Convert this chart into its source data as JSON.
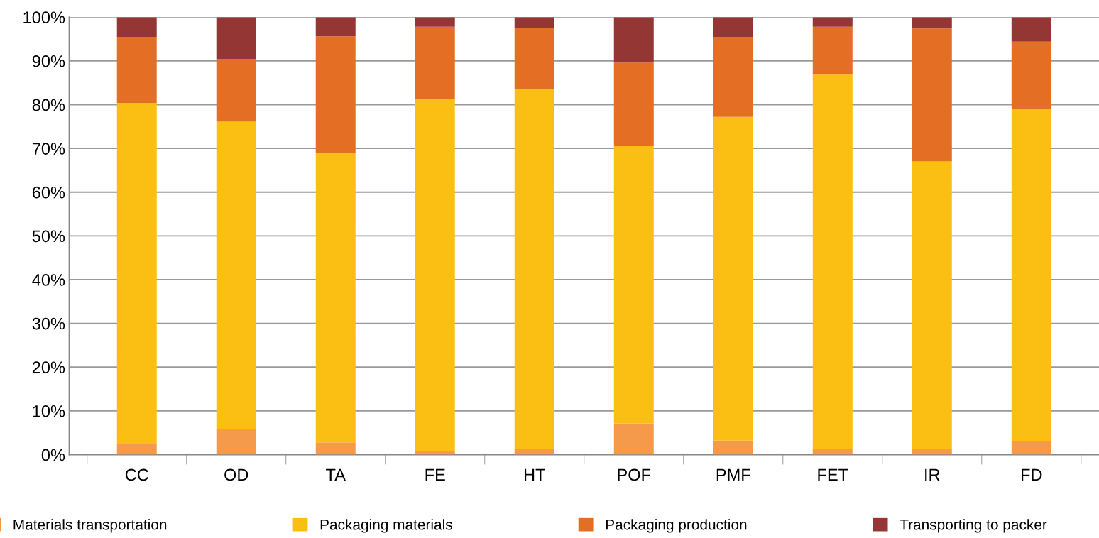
{
  "chart_data": {
    "type": "bar",
    "stacked": true,
    "categories": [
      "CC",
      "OD",
      "TA",
      "FE",
      "HT",
      "POF",
      "PMF",
      "FET",
      "IR",
      "FD"
    ],
    "series": [
      {
        "name": "Materials transportation",
        "color": "#f59a4a",
        "values": [
          2.4,
          5.8,
          2.8,
          0.9,
          1.3,
          7.1,
          3.2,
          1.3,
          1.3,
          3.1
        ]
      },
      {
        "name": "Packaging materials",
        "color": "#fbbf13",
        "values": [
          78.0,
          70.3,
          66.2,
          80.5,
          82.3,
          63.5,
          74.0,
          85.7,
          65.7,
          76.0
        ]
      },
      {
        "name": "Packaging production",
        "color": "#e46f24",
        "values": [
          15.1,
          14.3,
          26.6,
          16.4,
          13.9,
          19.0,
          18.2,
          10.8,
          30.4,
          15.3
        ]
      },
      {
        "name": "Transporting to packer",
        "color": "#943634",
        "values": [
          4.5,
          9.6,
          4.4,
          2.2,
          2.5,
          10.4,
          4.6,
          2.2,
          2.6,
          5.6
        ]
      }
    ],
    "ylim": [
      0,
      100
    ],
    "yticks": [
      {
        "value": 0,
        "label": "0%"
      },
      {
        "value": 10,
        "label": "10%"
      },
      {
        "value": 20,
        "label": "20%"
      },
      {
        "value": 30,
        "label": "30%"
      },
      {
        "value": 40,
        "label": "40%"
      },
      {
        "value": 50,
        "label": "50%"
      },
      {
        "value": 60,
        "label": "60%"
      },
      {
        "value": 70,
        "label": "70%"
      },
      {
        "value": 80,
        "label": "80%"
      },
      {
        "value": 90,
        "label": "90%"
      },
      {
        "value": 100,
        "label": "100%"
      }
    ],
    "grid": "y",
    "legend": "bottom"
  }
}
